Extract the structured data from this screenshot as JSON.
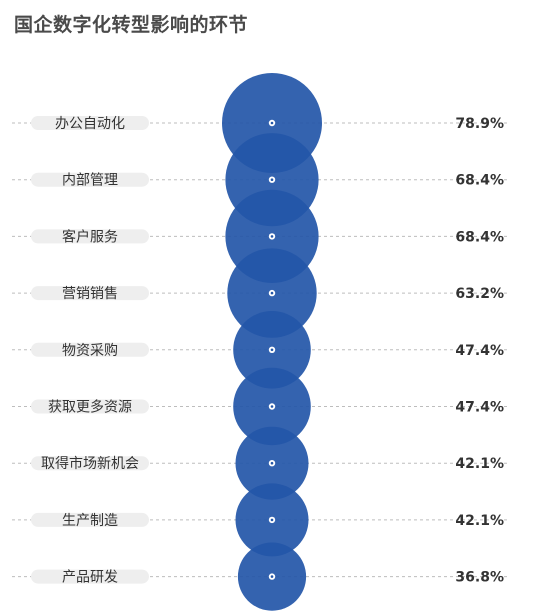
{
  "chart_data": {
    "type": "bubble",
    "title": "国企数字化转型影响的环节",
    "categories": [
      "办公自动化",
      "内部管理",
      "客户服务",
      "营销销售",
      "物资采购",
      "获取更多资源",
      "取得市场新机会",
      "生产制造",
      "产品研发"
    ],
    "values": [
      78.9,
      68.4,
      68.4,
      63.2,
      47.4,
      47.4,
      42.1,
      42.1,
      36.8
    ],
    "value_labels": [
      "78.9%",
      "68.4%",
      "68.4%",
      "63.2%",
      "47.4%",
      "47.4%",
      "42.1%",
      "42.1%",
      "36.8%"
    ],
    "unit": "%",
    "grid": false,
    "colors": {
      "bubble": "#2356a8",
      "center_dot": "#ffffff",
      "guide_line": "#bdbdbd",
      "label_pill": "#eeeeee",
      "text": "#333333",
      "title": "#4a4a4a"
    }
  }
}
